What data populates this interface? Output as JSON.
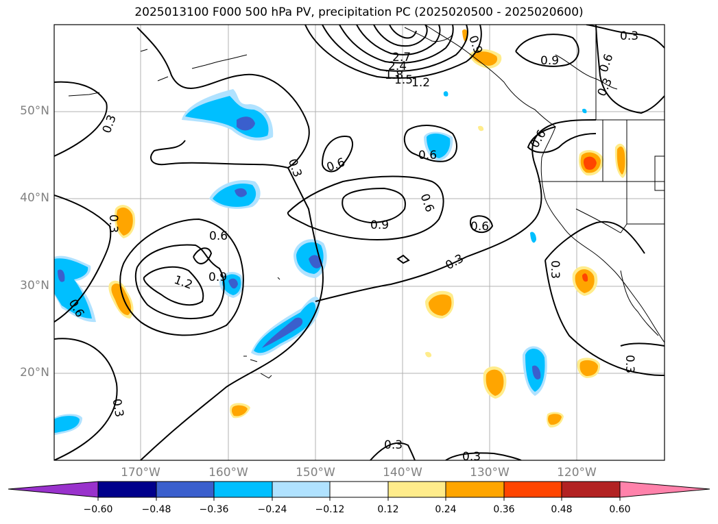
{
  "title": "2025013100 F000 500 hPa PV, precipitation PC (2025020500 - 2025020600)",
  "lat_labels": [
    "50°N",
    "40°N",
    "30°N",
    "20°N"
  ],
  "lon_labels": [
    "170°W",
    "160°W",
    "150°W",
    "140°W",
    "130°W",
    "120°W"
  ],
  "contour_labels": [
    "0.3",
    "0.6",
    "0.9",
    "1.2",
    "1.5",
    "1.8",
    "2.4",
    "2.7"
  ],
  "colorbar": {
    "ticks": [
      "−0.60",
      "−0.48",
      "−0.36",
      "−0.24",
      "−0.12",
      "0.12",
      "0.24",
      "0.36",
      "0.48",
      "0.60"
    ],
    "colors": [
      "#9932cc",
      "#00008b",
      "#3a5fcd",
      "#00bfff",
      "#b0e2ff",
      "#ffffff",
      "#ffec8b",
      "#ffa500",
      "#ff4500",
      "#b22222",
      "#ff82ab"
    ]
  }
}
